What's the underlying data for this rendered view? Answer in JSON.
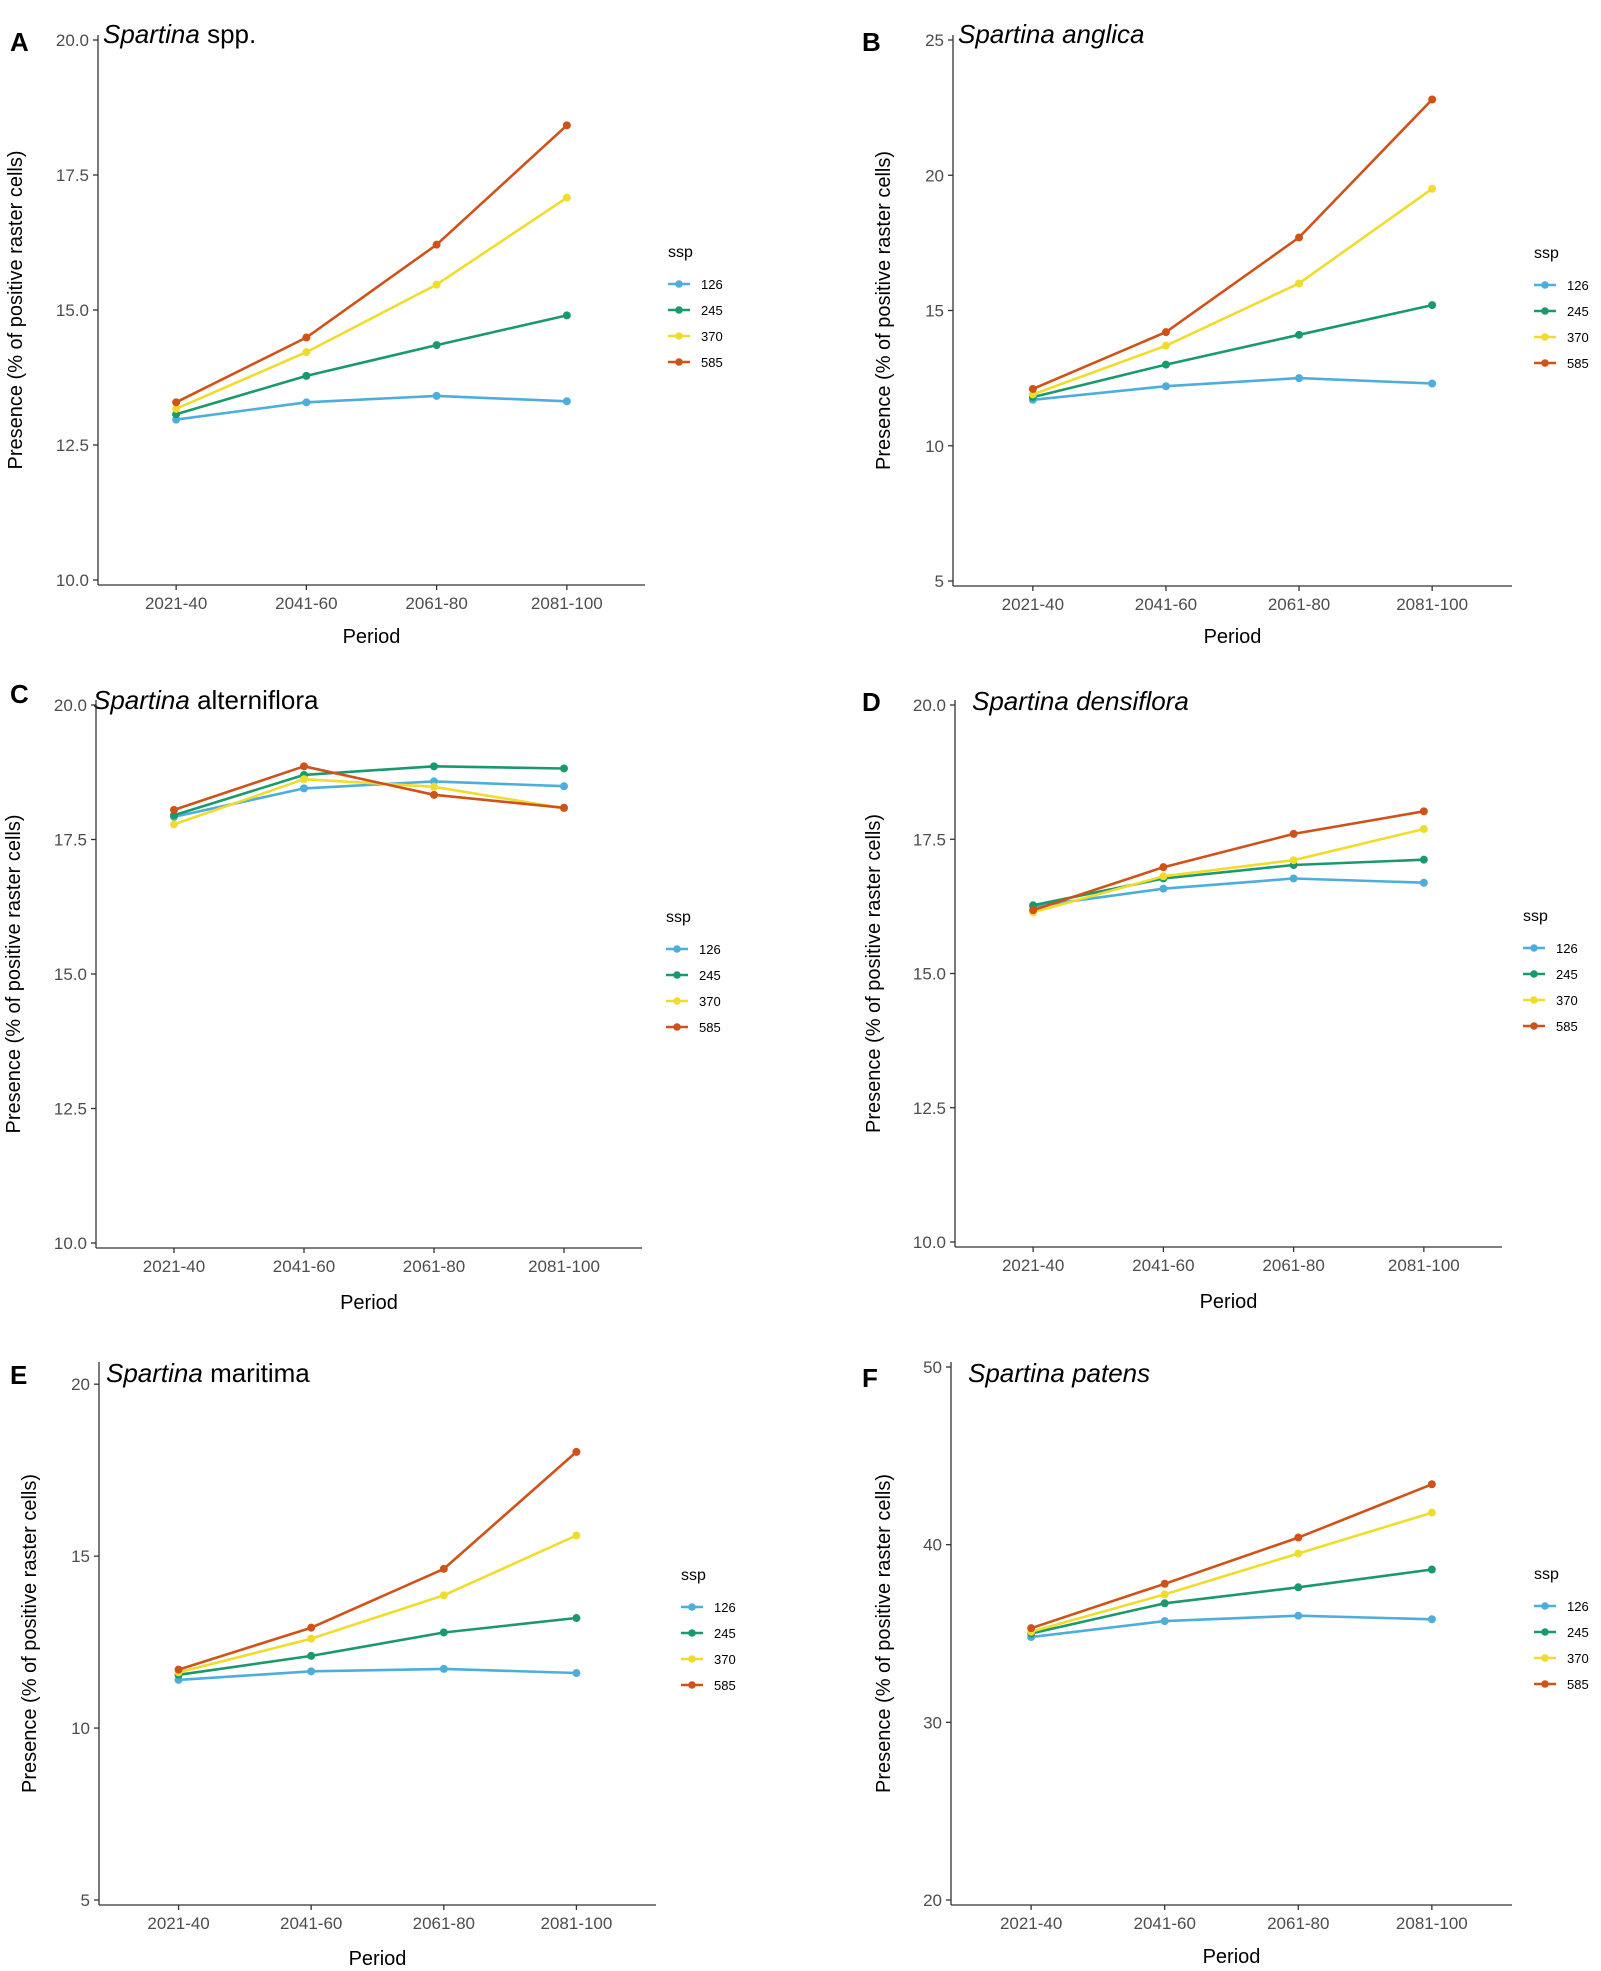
{
  "chart_data": [
    {
      "type": "line",
      "panel": "A",
      "title_italic": "Spartina",
      "title_rest": " spp.",
      "xlabel": "Period",
      "ylabel": "Presence (% of positive raster cells)",
      "categories": [
        "2021-40",
        "2041-60",
        "2061-80",
        "2081-100"
      ],
      "ylim": [
        10.0,
        20.0
      ],
      "yticks": [
        "10.0",
        "12.5",
        "15.0",
        "17.5",
        "20.0"
      ],
      "legend_title": "ssp",
      "series": [
        {
          "name": "126",
          "color": "#4eaedb",
          "values": [
            12.97,
            13.29,
            13.41,
            13.31
          ]
        },
        {
          "name": "245",
          "color": "#1a9a6c",
          "values": [
            13.07,
            13.78,
            14.35,
            14.9
          ]
        },
        {
          "name": "370",
          "color": "#f0dc2c",
          "values": [
            13.17,
            14.22,
            15.47,
            17.08
          ]
        },
        {
          "name": "585",
          "color": "#cf5219",
          "values": [
            13.29,
            14.49,
            16.21,
            18.42
          ]
        }
      ]
    },
    {
      "type": "line",
      "panel": "B",
      "title_italic": "Spartina anglica",
      "title_rest": "",
      "xlabel": "Period",
      "ylabel": "Presence (% of positive raster cells)",
      "categories": [
        "2021-40",
        "2041-60",
        "2061-80",
        "2081-100"
      ],
      "ylim": [
        5,
        25
      ],
      "yticks": [
        "5",
        "10",
        "15",
        "20",
        "25"
      ],
      "legend_title": "ssp",
      "series": [
        {
          "name": "126",
          "color": "#4eaedb",
          "values": [
            11.7,
            12.2,
            12.5,
            12.3
          ]
        },
        {
          "name": "245",
          "color": "#1a9a6c",
          "values": [
            11.8,
            13.0,
            14.1,
            15.2
          ]
        },
        {
          "name": "370",
          "color": "#f0dc2c",
          "values": [
            11.9,
            13.7,
            16.0,
            19.5
          ]
        },
        {
          "name": "585",
          "color": "#cf5219",
          "values": [
            12.1,
            14.2,
            17.7,
            22.8
          ]
        }
      ]
    },
    {
      "type": "line",
      "panel": "C",
      "title_italic": "Spartina",
      "title_rest": " alterniflora",
      "xlabel": "Period",
      "ylabel": "Presence (% of positive raster cells)",
      "categories": [
        "2021-40",
        "2041-60",
        "2061-80",
        "2081-100"
      ],
      "ylim": [
        10.0,
        20.0
      ],
      "yticks": [
        "10.0",
        "12.5",
        "15.0",
        "17.5",
        "20.0"
      ],
      "legend_title": "ssp",
      "series": [
        {
          "name": "126",
          "color": "#4eaedb",
          "values": [
            17.92,
            18.45,
            18.58,
            18.49
          ]
        },
        {
          "name": "245",
          "color": "#1a9a6c",
          "values": [
            17.95,
            18.7,
            18.86,
            18.82
          ]
        },
        {
          "name": "370",
          "color": "#f0dc2c",
          "values": [
            17.78,
            18.62,
            18.48,
            18.08
          ]
        },
        {
          "name": "585",
          "color": "#cf5219",
          "values": [
            18.05,
            18.86,
            18.33,
            18.09
          ]
        }
      ]
    },
    {
      "type": "line",
      "panel": "D",
      "title_italic": "Spartina densiflora",
      "title_rest": "",
      "xlabel": "Period",
      "ylabel": "Presence (% of positive raster cells)",
      "categories": [
        "2021-40",
        "2041-60",
        "2061-80",
        "2081-100"
      ],
      "ylim": [
        10.0,
        20.0
      ],
      "yticks": [
        "10.0",
        "12.5",
        "15.0",
        "17.5",
        "20.0"
      ],
      "legend_title": "ssp",
      "series": [
        {
          "name": "126",
          "color": "#4eaedb",
          "values": [
            16.25,
            16.58,
            16.77,
            16.69
          ]
        },
        {
          "name": "245",
          "color": "#1a9a6c",
          "values": [
            16.27,
            16.77,
            17.02,
            17.12
          ]
        },
        {
          "name": "370",
          "color": "#f0dc2c",
          "values": [
            16.14,
            16.81,
            17.11,
            17.69
          ]
        },
        {
          "name": "585",
          "color": "#cf5219",
          "values": [
            16.18,
            16.98,
            17.6,
            18.02
          ]
        }
      ]
    },
    {
      "type": "line",
      "panel": "E",
      "title_italic": "Spartina",
      "title_rest": " maritima",
      "xlabel": "Period",
      "ylabel": "Presence (% of positive raster cells)",
      "categories": [
        "2021-40",
        "2041-60",
        "2061-80",
        "2081-100"
      ],
      "ylim": [
        5,
        20.5
      ],
      "yticks": [
        "5",
        "10",
        "15",
        "20"
      ],
      "legend_title": "ssp",
      "series": [
        {
          "name": "126",
          "color": "#4eaedb",
          "values": [
            11.4,
            11.65,
            11.72,
            11.6
          ]
        },
        {
          "name": "245",
          "color": "#1a9a6c",
          "values": [
            11.55,
            12.1,
            12.78,
            13.2
          ]
        },
        {
          "name": "370",
          "color": "#f0dc2c",
          "values": [
            11.62,
            12.6,
            13.86,
            15.6
          ]
        },
        {
          "name": "585",
          "color": "#cf5219",
          "values": [
            11.7,
            12.92,
            14.63,
            18.03
          ]
        }
      ]
    },
    {
      "type": "line",
      "panel": "F",
      "title_italic": "Spartina patens",
      "title_rest": "",
      "xlabel": "Period",
      "ylabel": "Presence (% of positive raster cells)",
      "categories": [
        "2021-40",
        "2041-60",
        "2061-80",
        "2081-100"
      ],
      "ylim": [
        20,
        50
      ],
      "yticks": [
        "20",
        "30",
        "40",
        "50"
      ],
      "legend_title": "ssp",
      "series": [
        {
          "name": "126",
          "color": "#4eaedb",
          "values": [
            34.8,
            35.7,
            36.0,
            35.8
          ]
        },
        {
          "name": "245",
          "color": "#1a9a6c",
          "values": [
            35.0,
            36.7,
            37.6,
            38.6
          ]
        },
        {
          "name": "370",
          "color": "#f0dc2c",
          "values": [
            35.1,
            37.2,
            39.5,
            41.8
          ]
        },
        {
          "name": "585",
          "color": "#cf5219",
          "values": [
            35.3,
            37.8,
            40.4,
            43.4
          ]
        }
      ]
    }
  ]
}
